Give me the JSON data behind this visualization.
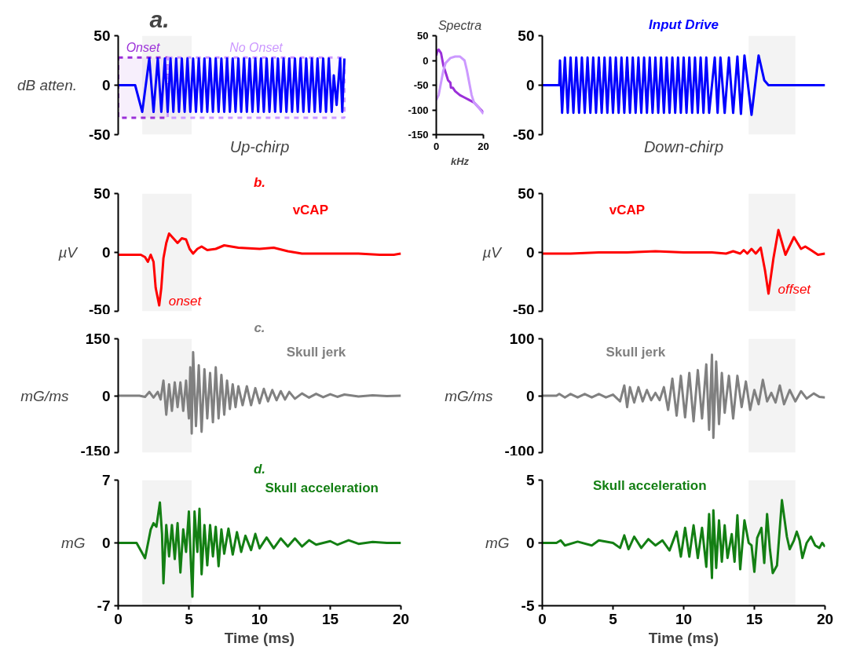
{
  "chart_data": [
    {
      "type": "line",
      "title": "a.",
      "xlabel": "Up-chirp",
      "ylabel": "dB atten.",
      "xlim": [
        0,
        20
      ],
      "ylim": [
        -50,
        50
      ],
      "yticks": [
        -50,
        0,
        50
      ],
      "tick_labels": "y",
      "grid": false,
      "x": [
        0,
        1.2,
        1.7,
        2.2,
        2.5,
        2.8,
        3.05,
        3.3,
        3.5,
        3.7,
        3.9,
        4.1,
        4.3,
        4.5,
        4.7,
        4.9,
        5.1,
        5.3,
        5.5,
        5.7,
        5.9,
        6.1,
        6.3,
        6.5,
        6.7,
        6.9,
        7.1,
        7.3,
        7.5,
        7.7,
        7.9,
        8.1,
        8.3,
        8.5,
        8.7,
        8.9,
        9.1,
        9.3,
        9.5,
        9.7,
        9.9,
        10.1,
        10.3,
        10.5,
        10.7,
        10.9,
        11.1,
        11.3,
        11.5,
        11.7,
        11.9,
        12.1,
        12.3,
        12.5,
        12.7,
        12.9,
        13.1,
        13.3,
        13.5,
        13.7,
        13.9,
        14.1,
        14.3,
        14.5,
        14.7,
        14.9,
        15.1,
        15.25,
        15.45,
        15.7,
        15.85,
        16.0
      ],
      "series": [
        {
          "color": "#0000ff",
          "values": [
            0,
            0,
            -27,
            27,
            -27,
            27,
            -27,
            27,
            -27,
            27,
            -27,
            27,
            -27,
            27,
            -27,
            27,
            -27,
            27,
            -27,
            27,
            -27,
            27,
            -27,
            27,
            -27,
            27,
            -27,
            27,
            -27,
            27,
            -27,
            27,
            -27,
            27,
            -27,
            27,
            -27,
            27,
            -27,
            27,
            -27,
            27,
            -27,
            27,
            -27,
            27,
            -27,
            27,
            -27,
            27,
            -27,
            27,
            -27,
            27,
            -27,
            27,
            -27,
            27,
            -27,
            27,
            -27,
            27,
            -27,
            27,
            -27,
            27,
            -27,
            10,
            -20,
            27,
            -27,
            27
          ]
        }
      ],
      "bands": [
        {
          "axis": "x",
          "from": 1.7,
          "to": 5.2,
          "color": "#f3f3f3"
        },
        {
          "axis": "x",
          "from": 0,
          "to": 3.5,
          "label": "Onset",
          "color": "#9b30d9"
        },
        {
          "axis": "x",
          "from": 3.5,
          "to": 16.0,
          "label": "No Onset",
          "color": "#cc99ff"
        }
      ]
    },
    {
      "type": "line",
      "title": "Spectra",
      "xlabel": "kHz",
      "xlim": [
        0,
        20
      ],
      "xticks": [
        0,
        20
      ],
      "ylim": [
        -150,
        50
      ],
      "yticks": [
        -150,
        -100,
        -50,
        0,
        50
      ],
      "grid": false,
      "series": [
        {
          "color": "#9b30d9",
          "x": [
            0,
            0.5,
            1,
            2,
            3,
            4,
            5,
            6,
            6.2,
            7,
            8,
            10,
            12,
            14,
            16,
            18,
            20
          ],
          "values": [
            10,
            20,
            22,
            15,
            -10,
            -25,
            -40,
            -45,
            -55,
            -55,
            -62,
            -70,
            -75,
            -80,
            -85,
            -95,
            -105
          ]
        },
        {
          "color": "#cc99ff",
          "x": [
            0,
            1,
            2,
            3,
            4,
            6,
            8,
            10,
            12,
            13,
            14,
            15,
            16,
            18,
            20
          ],
          "values": [
            -80,
            -70,
            -45,
            -20,
            -5,
            5,
            8,
            8,
            0,
            -20,
            -45,
            -70,
            -85,
            -95,
            -108
          ]
        }
      ]
    },
    {
      "type": "line",
      "title": "Input Drive",
      "xlabel": "Down-chirp",
      "xlim": [
        0,
        20
      ],
      "ylim": [
        -50,
        50
      ],
      "yticks": [
        -50,
        0,
        50
      ],
      "tick_labels": "y",
      "grid": false,
      "x": [
        0,
        1.2,
        1.25,
        1.4,
        1.6,
        1.8,
        2.0,
        2.2,
        2.4,
        2.6,
        2.8,
        3.0,
        3.2,
        3.4,
        3.6,
        3.8,
        4.0,
        4.2,
        4.4,
        4.6,
        4.8,
        5.0,
        5.2,
        5.4,
        5.6,
        5.8,
        6.0,
        6.2,
        6.4,
        6.6,
        6.8,
        7.0,
        7.2,
        7.4,
        7.6,
        7.8,
        8.0,
        8.2,
        8.4,
        8.6,
        8.8,
        9.0,
        9.2,
        9.4,
        9.6,
        9.8,
        10.0,
        10.2,
        10.4,
        10.6,
        10.8,
        11.0,
        11.2,
        11.4,
        11.6,
        11.8,
        12.2,
        12.4,
        12.6,
        12.9,
        13.2,
        13.5,
        13.8,
        14.05,
        14.3,
        14.8,
        15.3,
        15.7,
        16.0,
        20
      ],
      "series": [
        {
          "color": "#0000ff",
          "values": [
            0,
            0,
            25,
            -28,
            28,
            -28,
            28,
            -28,
            28,
            -28,
            28,
            -28,
            28,
            -28,
            28,
            -28,
            28,
            -28,
            28,
            -28,
            28,
            -28,
            28,
            -28,
            28,
            -28,
            28,
            -28,
            28,
            -28,
            28,
            -28,
            28,
            -28,
            28,
            -28,
            28,
            -28,
            28,
            -28,
            28,
            -28,
            28,
            -28,
            28,
            -28,
            28,
            -28,
            28,
            -28,
            28,
            -28,
            28,
            -28,
            28,
            -28,
            28,
            -28,
            28,
            -28,
            28,
            -28,
            29,
            -29,
            30,
            -30,
            30,
            5,
            0,
            0
          ]
        }
      ],
      "bands": [
        {
          "axis": "x",
          "from": 14.6,
          "to": 17.9,
          "color": "#f3f3f3"
        }
      ]
    },
    {
      "type": "line",
      "title": "b.",
      "ylabel": "µV",
      "xlim": [
        0,
        20
      ],
      "ylim": [
        -50,
        50
      ],
      "yticks": [
        -50,
        0,
        50
      ],
      "tick_labels": "y",
      "grid": false,
      "x": [
        0,
        1.6,
        1.9,
        2.1,
        2.3,
        2.5,
        2.65,
        2.9,
        3.05,
        3.2,
        3.4,
        3.6,
        3.9,
        4.2,
        4.5,
        4.8,
        5.05,
        5.3,
        5.6,
        5.9,
        6.3,
        6.9,
        7.5,
        8.5,
        10,
        11,
        12,
        13,
        15,
        17,
        18.5,
        19.5,
        20
      ],
      "series": [
        {
          "name": "vCAP",
          "color": "#ff0000",
          "values": [
            -2,
            -2,
            -4,
            -8,
            -2,
            -8,
            -30,
            -45,
            -30,
            -5,
            8,
            16,
            12,
            8,
            12,
            11,
            3,
            -1,
            3,
            5,
            2,
            3,
            6,
            4,
            3,
            4,
            1,
            -1,
            -1,
            -1,
            -2,
            -2,
            -1
          ]
        }
      ],
      "annotations": [
        {
          "text": "onset",
          "x": 2.9,
          "y": -45
        }
      ],
      "bands": [
        {
          "axis": "x",
          "from": 1.7,
          "to": 5.2,
          "color": "#f3f3f3"
        }
      ]
    },
    {
      "type": "line",
      "xlabel": null,
      "ylabel": "µV",
      "xlim": [
        0,
        20
      ],
      "ylim": [
        -50,
        50
      ],
      "yticks": [
        -50,
        0,
        50
      ],
      "tick_labels": "y",
      "grid": false,
      "x": [
        0,
        2,
        4,
        6,
        8,
        10,
        12,
        13,
        13.5,
        14,
        14.25,
        14.5,
        14.8,
        15.1,
        15.45,
        15.75,
        16.0,
        16.35,
        16.7,
        17.2,
        17.8,
        18.3,
        18.6,
        19.0,
        19.5,
        20
      ],
      "series": [
        {
          "name": "vCAP",
          "color": "#ff0000",
          "values": [
            -1,
            -1,
            0,
            0,
            1,
            0,
            0,
            -1,
            1,
            -1,
            2,
            -1,
            3,
            -1,
            4,
            -15,
            -35,
            -5,
            19,
            -2,
            13,
            3,
            5,
            2,
            -2,
            -1
          ]
        }
      ],
      "annotations": [
        {
          "text": "offset",
          "x": 16.0,
          "y": -35
        }
      ],
      "bands": [
        {
          "axis": "x",
          "from": 14.6,
          "to": 17.9,
          "color": "#f3f3f3"
        }
      ]
    },
    {
      "type": "line",
      "title": "c.",
      "ylabel": "mG/ms",
      "xlim": [
        0,
        20
      ],
      "ylim": [
        -150,
        150
      ],
      "yticks": [
        -150,
        0,
        150
      ],
      "tick_labels": "y",
      "grid": false,
      "x": [
        0,
        1.5,
        1.9,
        2.2,
        2.5,
        2.8,
        3.0,
        3.2,
        3.4,
        3.6,
        3.8,
        4.0,
        4.2,
        4.4,
        4.6,
        4.8,
        5.0,
        5.1,
        5.2,
        5.3,
        5.5,
        5.7,
        5.9,
        6.1,
        6.3,
        6.5,
        6.7,
        6.9,
        7.1,
        7.3,
        7.5,
        7.7,
        7.9,
        8.1,
        8.3,
        8.5,
        8.8,
        9.1,
        9.4,
        9.7,
        10.0,
        10.3,
        10.6,
        10.9,
        11.2,
        11.5,
        11.8,
        12.1,
        12.5,
        13,
        13.5,
        14,
        14.5,
        15,
        15.5,
        16,
        17,
        18,
        19,
        20
      ],
      "series": [
        {
          "name": "Skull jerk",
          "color": "#808080",
          "values": [
            0,
            0,
            -3,
            10,
            -5,
            10,
            -10,
            40,
            -50,
            30,
            -40,
            35,
            -30,
            35,
            -40,
            40,
            -60,
            75,
            -100,
            115,
            -80,
            80,
            -95,
            70,
            -60,
            60,
            -70,
            75,
            -60,
            55,
            -50,
            40,
            -35,
            30,
            -30,
            25,
            -25,
            25,
            -25,
            20,
            -20,
            18,
            -15,
            15,
            -12,
            12,
            -10,
            10,
            -8,
            6,
            -5,
            5,
            -4,
            4,
            -3,
            3,
            -2,
            1,
            -1,
            0
          ]
        }
      ],
      "bands": [
        {
          "axis": "x",
          "from": 1.7,
          "to": 5.2,
          "color": "#f3f3f3"
        }
      ]
    },
    {
      "type": "line",
      "ylabel": "mG/ms",
      "xlim": [
        0,
        20
      ],
      "ylim": [
        -100,
        100
      ],
      "yticks": [
        -100,
        0,
        100
      ],
      "tick_labels": "y",
      "grid": false,
      "x": [
        0,
        1,
        1.2,
        1.6,
        2,
        2.5,
        3,
        3.5,
        4,
        4.5,
        5,
        5.5,
        5.8,
        6,
        6.2,
        6.5,
        6.8,
        7.1,
        7.4,
        7.7,
        8,
        8.3,
        8.6,
        8.9,
        9.2,
        9.5,
        9.8,
        10.1,
        10.4,
        10.7,
        11,
        11.3,
        11.6,
        11.8,
        12.0,
        12.1,
        12.3,
        12.5,
        12.7,
        12.9,
        13.2,
        13.5,
        13.8,
        14.1,
        14.4,
        14.7,
        15.0,
        15.3,
        15.6,
        15.9,
        16.2,
        16.5,
        16.8,
        17.1,
        17.5,
        17.9,
        18.3,
        18.7,
        19.2,
        19.6,
        20
      ],
      "series": [
        {
          "name": "Skull jerk",
          "color": "#808080",
          "values": [
            0,
            0,
            3,
            -3,
            3,
            -3,
            3,
            -3,
            3,
            -3,
            2,
            -10,
            18,
            -20,
            15,
            -12,
            15,
            -10,
            10,
            -8,
            5,
            -8,
            15,
            -25,
            30,
            -35,
            35,
            -38,
            40,
            -45,
            45,
            -40,
            55,
            -60,
            72,
            -74,
            60,
            -50,
            40,
            -30,
            35,
            -40,
            35,
            -20,
            25,
            -25,
            10,
            -15,
            28,
            -10,
            5,
            -12,
            18,
            -15,
            10,
            -10,
            8,
            -5,
            4,
            -2,
            -3
          ]
        }
      ],
      "bands": [
        {
          "axis": "x",
          "from": 14.6,
          "to": 17.9,
          "color": "#f3f3f3"
        }
      ]
    },
    {
      "type": "line",
      "title": "d.",
      "xlabel": "Time (ms)",
      "ylabel": "mG",
      "xlim": [
        0,
        20
      ],
      "xticks": [
        0,
        5,
        10,
        15,
        20
      ],
      "ylim": [
        -7,
        7
      ],
      "yticks": [
        -7,
        0,
        7
      ],
      "grid": false,
      "x": [
        0,
        1.3,
        1.9,
        2.3,
        2.5,
        2.7,
        2.95,
        3.1,
        3.2,
        3.4,
        3.6,
        3.8,
        4.0,
        4.2,
        4.4,
        4.6,
        4.8,
        5.0,
        5.15,
        5.25,
        5.4,
        5.6,
        5.75,
        5.9,
        6.1,
        6.3,
        6.5,
        6.7,
        6.9,
        7.1,
        7.3,
        7.5,
        7.8,
        8.1,
        8.4,
        8.7,
        9,
        9.4,
        9.7,
        10,
        10.5,
        11,
        11.5,
        12,
        12.5,
        13,
        13.5,
        14,
        15,
        15.5,
        16.3,
        17,
        18,
        19,
        20
      ],
      "series": [
        {
          "name": "Skull acceleration",
          "color": "#137f13",
          "values": [
            0,
            0,
            -1.7,
            1.5,
            2.2,
            1.8,
            4.5,
            1,
            -4.5,
            2,
            -1.5,
            2,
            -1.8,
            2.2,
            -3.3,
            1.5,
            -1,
            3.5,
            -2.5,
            -6,
            3.5,
            -1,
            3.8,
            -3.5,
            2,
            -2.5,
            2,
            -1.5,
            1.8,
            -2.6,
            1.5,
            -1.2,
            1.6,
            -1.3,
            1.2,
            -1,
            0.8,
            -0.8,
            1,
            -0.6,
            0.6,
            -0.6,
            0.5,
            -0.4,
            0.5,
            -0.4,
            0.3,
            -0.2,
            0.2,
            -0.2,
            0.3,
            -0.1,
            0.1,
            0,
            0
          ]
        }
      ],
      "bands": [
        {
          "axis": "x",
          "from": 1.7,
          "to": 5.2,
          "color": "#f3f3f3"
        }
      ]
    },
    {
      "type": "line",
      "xlabel": "Time (ms)",
      "ylabel": "mG",
      "xlim": [
        0,
        20
      ],
      "xticks": [
        0,
        5,
        10,
        15,
        20
      ],
      "ylim": [
        -5,
        5
      ],
      "yticks": [
        -5,
        0,
        5
      ],
      "grid": false,
      "x": [
        0,
        1,
        1.3,
        1.6,
        2.5,
        3.5,
        4,
        5,
        5.5,
        5.8,
        6.1,
        6.5,
        7,
        7.5,
        8,
        8.5,
        9,
        9.5,
        9.8,
        10.1,
        10.4,
        10.7,
        11,
        11.3,
        11.6,
        11.8,
        12.0,
        12.1,
        12.3,
        12.5,
        12.7,
        12.9,
        13.1,
        13.4,
        13.6,
        13.8,
        14.0,
        14.3,
        14.6,
        14.8,
        15.0,
        15.2,
        15.5,
        15.7,
        15.9,
        16.1,
        16.3,
        16.6,
        16.95,
        17.3,
        17.5,
        17.8,
        18.0,
        18.2,
        18.4,
        18.7,
        19.0,
        19.3,
        19.6,
        19.8,
        20
      ],
      "series": [
        {
          "name": "Skull acceleration",
          "color": "#137f13",
          "values": [
            0,
            0,
            0.2,
            -0.2,
            0.1,
            -0.2,
            0.2,
            0,
            -0.4,
            0.6,
            -0.5,
            0.5,
            -0.4,
            0.3,
            -0.2,
            0.2,
            -0.6,
            0.9,
            -1.1,
            1.2,
            -1.1,
            1.4,
            -1.2,
            1.2,
            -1.9,
            2.3,
            -2.8,
            2.6,
            -2,
            1.8,
            -1.5,
            1.4,
            -1.2,
            0.7,
            -1.5,
            2.2,
            -2.1,
            1.8,
            0,
            -0.2,
            -2.3,
            0.4,
            1.2,
            -1.6,
            2.3,
            -0.5,
            -2.4,
            -1.8,
            3.4,
            0.5,
            -0.5,
            0.2,
            0.9,
            0.2,
            -1.2,
            0,
            0.5,
            -0.2,
            -0.4,
            0,
            -0.3
          ]
        }
      ],
      "bands": [
        {
          "axis": "x",
          "from": 14.6,
          "to": 17.9,
          "color": "#f3f3f3"
        }
      ]
    }
  ]
}
